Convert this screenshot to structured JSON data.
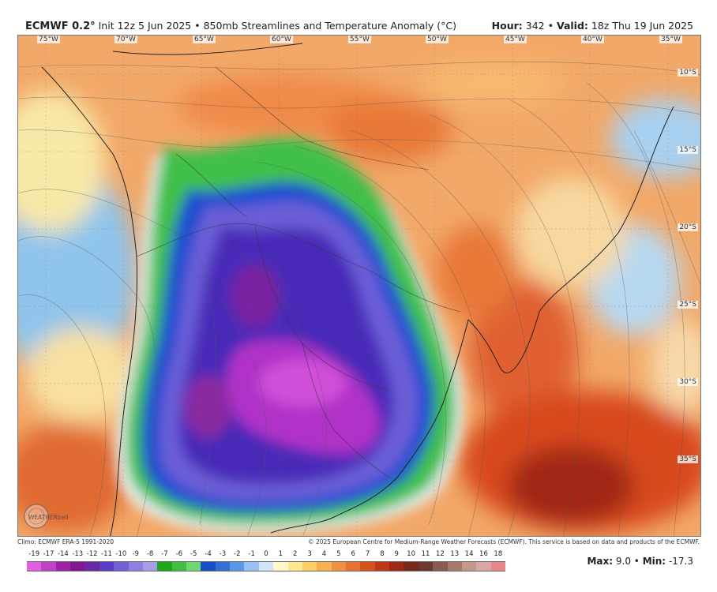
{
  "header": {
    "model": "ECMWF 0.2°",
    "init": "Init 12z 5 Jun 2025",
    "product": "850mb Streamlines and Temperature Anomaly (°C)",
    "hour_label": "Hour:",
    "hour_value": "342",
    "valid_label": "Valid:",
    "valid_value": "18z Thu 19 Jun 2025",
    "separator": "•"
  },
  "map": {
    "longitude_labels": [
      "75°W",
      "70°W",
      "65°W",
      "60°W",
      "55°W",
      "50°W",
      "45°W",
      "40°W",
      "35°W"
    ],
    "latitude_labels": [
      "10°S",
      "15°S",
      "20°S",
      "25°S",
      "30°S",
      "35°S"
    ],
    "watermark": "WEATHERbell",
    "colors": {
      "warm_background": "#f0a060",
      "strong_warm": "#d8401e",
      "extreme_warm": "#8a1f1a",
      "cold_core": "#a020c0",
      "cold_mid": "#5a3cc8",
      "cold_edge": "#3ab84a"
    }
  },
  "footer": {
    "climo": "Climo: ECMWF ERA-5 1991-2020",
    "copyright": "© 2025 European Centre for Medium-Range Weather Forecasts (ECMWF). This service is based on data and products of the ECMWF."
  },
  "colorbar": {
    "labels": [
      "-19",
      "-17",
      "-14",
      "-13",
      "-12",
      "-11",
      "-10",
      "-9",
      "-8",
      "-7",
      "-6",
      "-5",
      "-4",
      "-3",
      "-2",
      "-1",
      "0",
      "1",
      "2",
      "3",
      "4",
      "5",
      "6",
      "7",
      "8",
      "9",
      "10",
      "11",
      "12",
      "13",
      "14",
      "16",
      "18"
    ],
    "colors": [
      "#e060e0",
      "#c040c8",
      "#a020a8",
      "#801890",
      "#6a28a8",
      "#5a3cc8",
      "#7060d8",
      "#8c80e0",
      "#a89ce8",
      "#18a818",
      "#40c040",
      "#70d870",
      "#1850c8",
      "#3070d8",
      "#5898e8",
      "#98c0f0",
      "#d0e4f8",
      "#fff8c8",
      "#ffe890",
      "#fcd060",
      "#f8b050",
      "#f09040",
      "#e87030",
      "#d8501e",
      "#c03818",
      "#a02818",
      "#7a2a1a",
      "#6a3a30",
      "#8a5a50",
      "#a87868",
      "#c89888",
      "#d8a8a8",
      "#e88888"
    ]
  },
  "stats": {
    "max_label": "Max:",
    "max_value": "9.0",
    "min_label": "Min:",
    "min_value": "-17.3"
  }
}
